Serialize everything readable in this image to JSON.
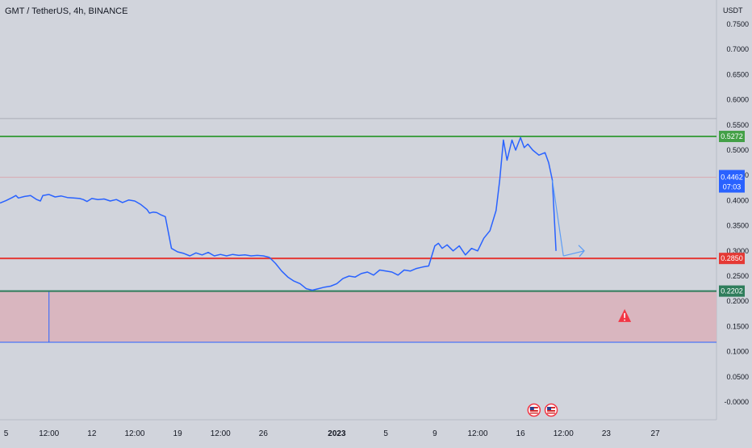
{
  "header": {
    "title": "GMT / TetherUS, 4h, BINANCE",
    "currency": "USDT"
  },
  "chart_data": {
    "type": "line",
    "title": "GMT / TetherUS, 4h, BINANCE",
    "ylabel": "USDT",
    "ylim": [
      -0.02,
      0.78
    ],
    "grid": false,
    "y_ticks": [
      "0.7500",
      "0.7000",
      "0.6500",
      "0.6000",
      "0.5500",
      "0.5000",
      "0.4500",
      "0.4000",
      "0.3500",
      "0.3000",
      "0.2500",
      "0.2000",
      "0.1500",
      "0.1000",
      "0.0500",
      "-0.0000"
    ],
    "x_ticks": [
      "5",
      "12:00",
      "12",
      "12:00",
      "19",
      "12:00",
      "26",
      "2023",
      "5",
      "9",
      "12:00",
      "16",
      "12:00",
      "23",
      "27"
    ],
    "x_tick_values": [
      5,
      8.5,
      12,
      15.5,
      19,
      22.5,
      26,
      32,
      36,
      40,
      43.5,
      47,
      50.5,
      54,
      58
    ],
    "xlim": [
      4.5,
      63
    ],
    "series": [
      {
        "color": "#2962ff",
        "x": [
          4.5,
          5,
          5.5,
          5.8,
          6,
          6.5,
          7,
          7.5,
          7.8,
          8,
          8.5,
          9,
          9.5,
          10,
          10.5,
          11,
          11.3,
          11.6,
          12,
          12.5,
          13,
          13.5,
          14,
          14.5,
          15,
          15.5,
          16,
          16.5,
          16.7,
          17,
          17.3,
          17.6,
          18,
          18.5,
          19,
          19.5,
          20,
          20.5,
          21,
          21.5,
          22,
          22.5,
          23,
          23.5,
          24,
          24.5,
          25,
          25.5,
          26,
          26.5,
          27,
          27.5,
          28,
          28.5,
          29,
          29.5,
          30,
          30.5,
          31,
          31.5,
          32,
          32.5,
          33,
          33.5,
          34,
          34.5,
          35,
          35.5,
          36,
          36.5,
          37,
          37.5,
          38,
          38.5,
          39,
          39.5,
          40,
          40.3,
          40.6,
          41,
          41.5,
          42,
          42.5,
          43,
          43.5,
          44,
          44.5,
          45,
          45.3,
          45.6,
          45.9,
          46.3,
          46.6,
          47,
          47.3,
          47.6,
          48,
          48.5,
          49,
          49.3,
          49.6,
          49.9
        ],
        "values": [
          0.395,
          0.4,
          0.406,
          0.41,
          0.405,
          0.408,
          0.41,
          0.402,
          0.399,
          0.41,
          0.412,
          0.407,
          0.409,
          0.406,
          0.405,
          0.404,
          0.402,
          0.398,
          0.404,
          0.402,
          0.403,
          0.399,
          0.402,
          0.396,
          0.401,
          0.399,
          0.392,
          0.382,
          0.375,
          0.377,
          0.376,
          0.372,
          0.368,
          0.305,
          0.298,
          0.295,
          0.29,
          0.296,
          0.292,
          0.297,
          0.29,
          0.293,
          0.29,
          0.293,
          0.291,
          0.292,
          0.29,
          0.291,
          0.29,
          0.287,
          0.275,
          0.26,
          0.248,
          0.24,
          0.235,
          0.225,
          0.222,
          0.225,
          0.228,
          0.23,
          0.235,
          0.245,
          0.25,
          0.248,
          0.255,
          0.258,
          0.252,
          0.262,
          0.26,
          0.258,
          0.252,
          0.262,
          0.26,
          0.265,
          0.268,
          0.27,
          0.31,
          0.315,
          0.305,
          0.312,
          0.3,
          0.31,
          0.292,
          0.305,
          0.3,
          0.325,
          0.34,
          0.38,
          0.44,
          0.52,
          0.48,
          0.52,
          0.5,
          0.525,
          0.505,
          0.512,
          0.5,
          0.49,
          0.495,
          0.475,
          0.44,
          0.3
        ]
      }
    ],
    "projection": {
      "color": "#5b9cf6",
      "x": [
        50.5,
        52.2
      ],
      "values": [
        0.29,
        0.3
      ]
    },
    "price_lines": [
      {
        "value": 0.5272,
        "label": "0.5272",
        "color": "#43a047"
      },
      {
        "value": 0.285,
        "label": "0.2850",
        "color": "#e53935"
      },
      {
        "value": 0.2202,
        "label": "0.2202",
        "color": "#2e7d5b"
      }
    ],
    "last_price": {
      "value": 0.4462,
      "label": "0.4462",
      "countdown": "07:03",
      "color": "#2962ff"
    },
    "faint_lines": [
      0.5628,
      0.4462
    ],
    "zone": {
      "top": 0.2202,
      "bottom": 0.1185,
      "color": "#d9b3bb"
    },
    "zone_marker_x": 8.5,
    "warning_icon": {
      "x": 55.5,
      "value": 0.17,
      "icon": "warning-icon",
      "color": "#f23645"
    },
    "event_icons": [
      {
        "x": 48.1,
        "icon": "us-flag-icon"
      },
      {
        "x": 49.5,
        "icon": "us-flag-icon"
      }
    ]
  }
}
